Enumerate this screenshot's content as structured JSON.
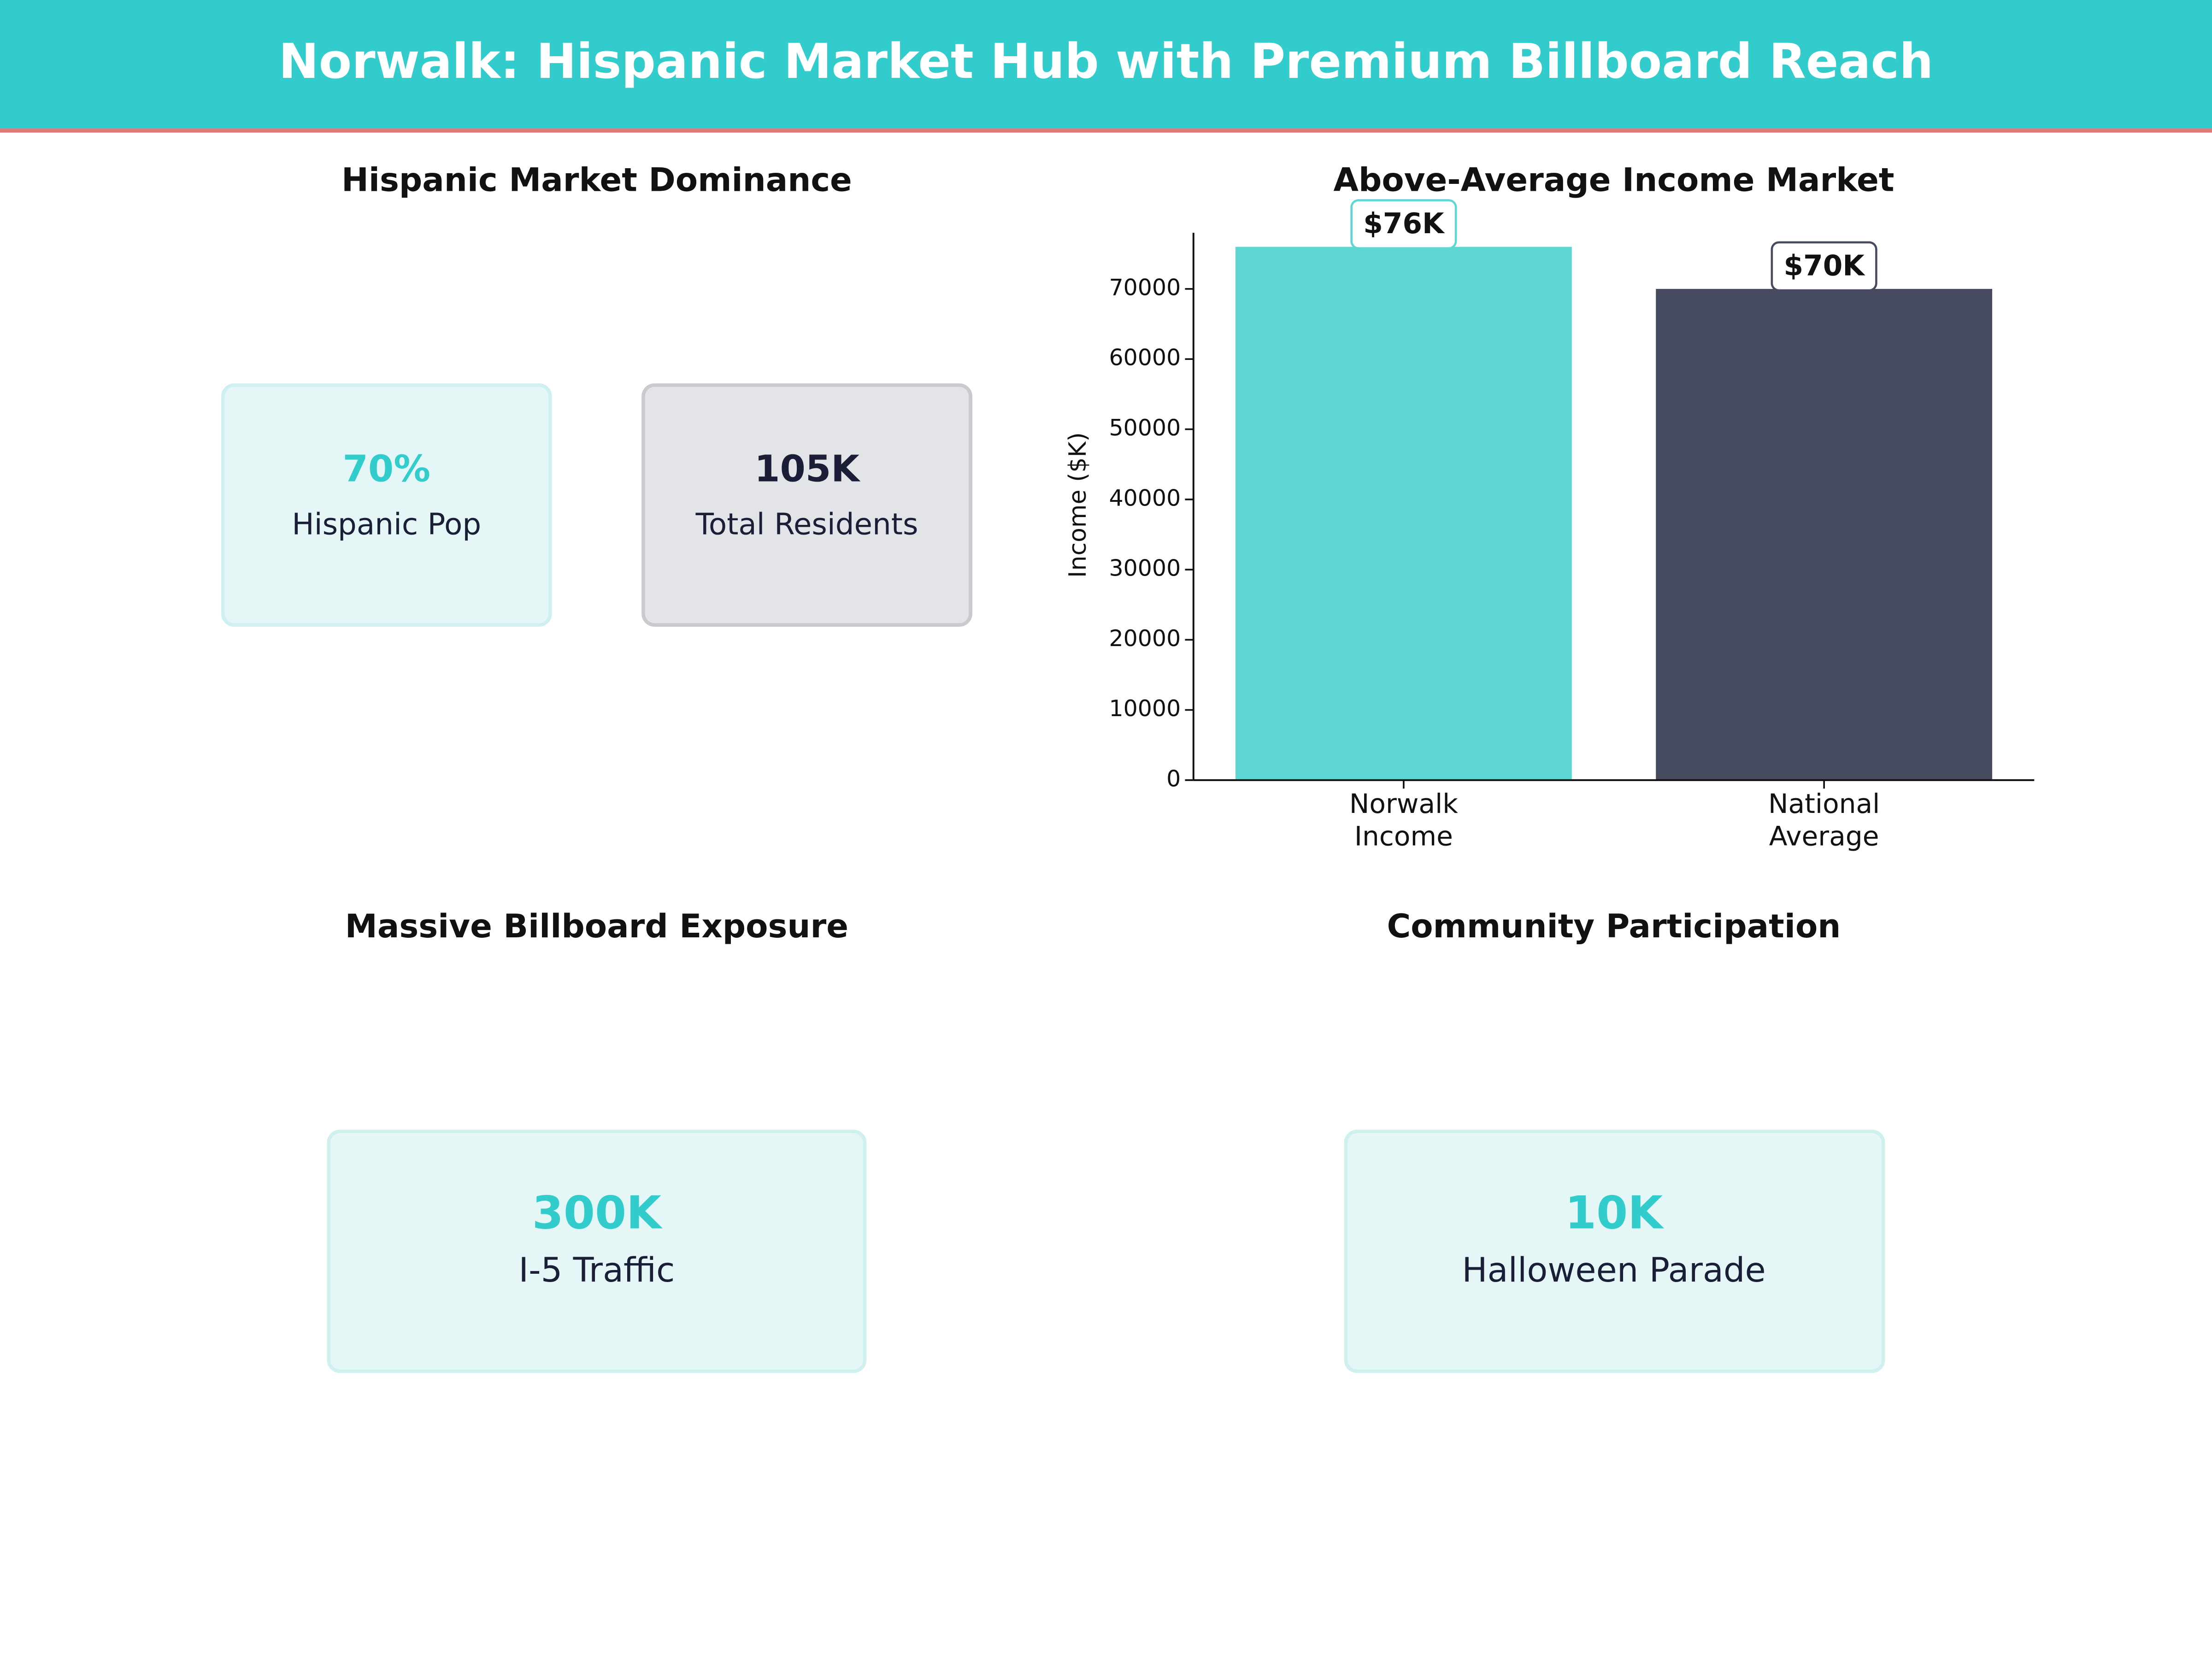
{
  "header": {
    "title": "Norwalk: Hispanic Market Hub with Premium Billboard Reach"
  },
  "panels": [
    {
      "title": "Hispanic Market Dominance",
      "cards": [
        {
          "value": "70%",
          "label": "Hispanic Pop"
        },
        {
          "value": "105K",
          "label": "Total Residents"
        }
      ]
    },
    {
      "title": "Massive Billboard Exposure",
      "cards": [
        {
          "value": "300K",
          "label": "I-5 Traffic"
        }
      ]
    },
    {
      "title": "Community Participation",
      "cards": [
        {
          "value": "10K",
          "label": "Halloween Parade"
        }
      ]
    }
  ],
  "chart_data": {
    "type": "bar",
    "title": "Above-Average Income Market",
    "y_label": "Income ($K)",
    "categories": [
      "Norwalk\nIncome",
      "National\nAverage"
    ],
    "values": [
      76000,
      70000
    ],
    "value_labels": [
      "$76K",
      "$70K"
    ],
    "colors": [
      "#5DD6D4",
      "#464B60"
    ],
    "ylim": [
      0,
      78000
    ],
    "yticks": [
      0,
      10000,
      20000,
      30000,
      40000,
      50000,
      60000,
      70000
    ]
  }
}
